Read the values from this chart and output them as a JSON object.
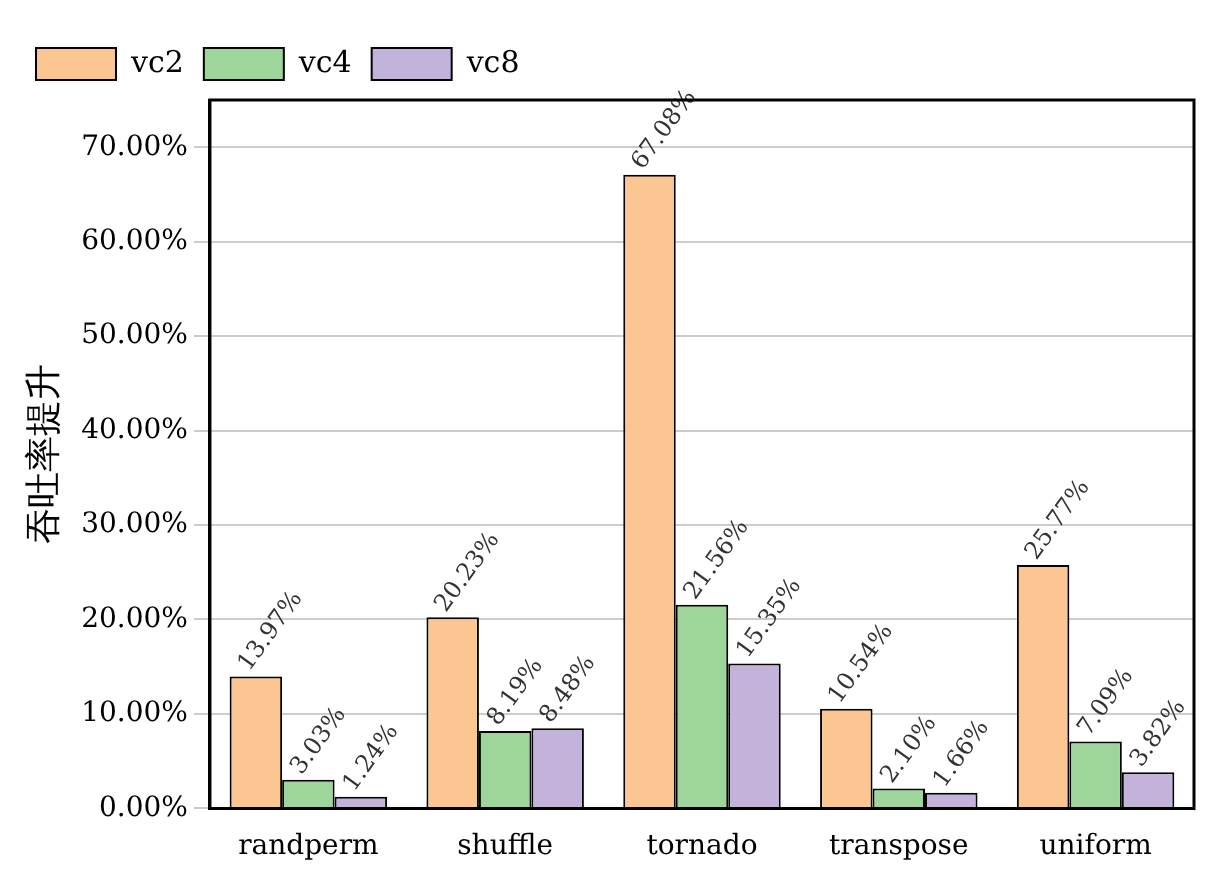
{
  "chart_data": {
    "type": "bar",
    "ylabel": "吞吐率提升",
    "categories": [
      "randperm",
      "shuffle",
      "tornado",
      "transpose",
      "uniform"
    ],
    "series": [
      {
        "name": "vc2",
        "color": "#fcc693",
        "values": [
          13.97,
          20.23,
          67.08,
          10.54,
          25.77
        ],
        "value_labels": [
          "13.97%",
          "20.23%",
          "67.08%",
          "10.54%",
          "25.77%"
        ]
      },
      {
        "name": "vc4",
        "color": "#9dd59a",
        "values": [
          3.03,
          8.19,
          21.56,
          2.1,
          7.09
        ],
        "value_labels": [
          "3.03%",
          "8.19%",
          "21.56%",
          "2.10%",
          "7.09%"
        ]
      },
      {
        "name": "vc8",
        "color": "#c3b3db",
        "values": [
          1.24,
          8.48,
          15.35,
          1.66,
          3.82
        ],
        "value_labels": [
          "1.24%",
          "8.48%",
          "15.35%",
          "1.66%",
          "3.82%"
        ]
      }
    ],
    "ylim": [
      0,
      75
    ],
    "yticks": [
      {
        "value": 0,
        "label": "0.00%"
      },
      {
        "value": 10,
        "label": "10.00%"
      },
      {
        "value": 20,
        "label": "20.00%"
      },
      {
        "value": 30,
        "label": "30.00%"
      },
      {
        "value": 40,
        "label": "40.00%"
      },
      {
        "value": 50,
        "label": "50.00%"
      },
      {
        "value": 60,
        "label": "60.00%"
      },
      {
        "value": 70,
        "label": "70.00%"
      }
    ],
    "grid": "y",
    "legend": "top left"
  }
}
